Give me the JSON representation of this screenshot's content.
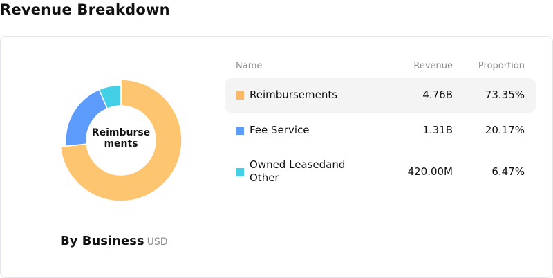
{
  "title": "Revenue Breakdown",
  "chart_data": {
    "type": "pie",
    "variant": "donut",
    "title": "By Business",
    "unit": "USD",
    "center_label": "Reimburse ments",
    "active": "Reimbursements",
    "legend_placement": "right (table)",
    "columns": [
      "Name",
      "Revenue",
      "Proportion"
    ],
    "series": [
      {
        "name": "Reimbursements",
        "revenue": "4.76B",
        "value": 73.35,
        "proportion": "73.35%",
        "color": "#fdc570"
      },
      {
        "name": "Fee Service",
        "revenue": "1.31B",
        "value": 20.17,
        "proportion": "20.17%",
        "color": "#5d9bfd"
      },
      {
        "name": "Owned Leasedand Other",
        "revenue": "420.00M",
        "value": 6.47,
        "proportion": "6.47%",
        "color": "#43d0e6"
      }
    ]
  }
}
